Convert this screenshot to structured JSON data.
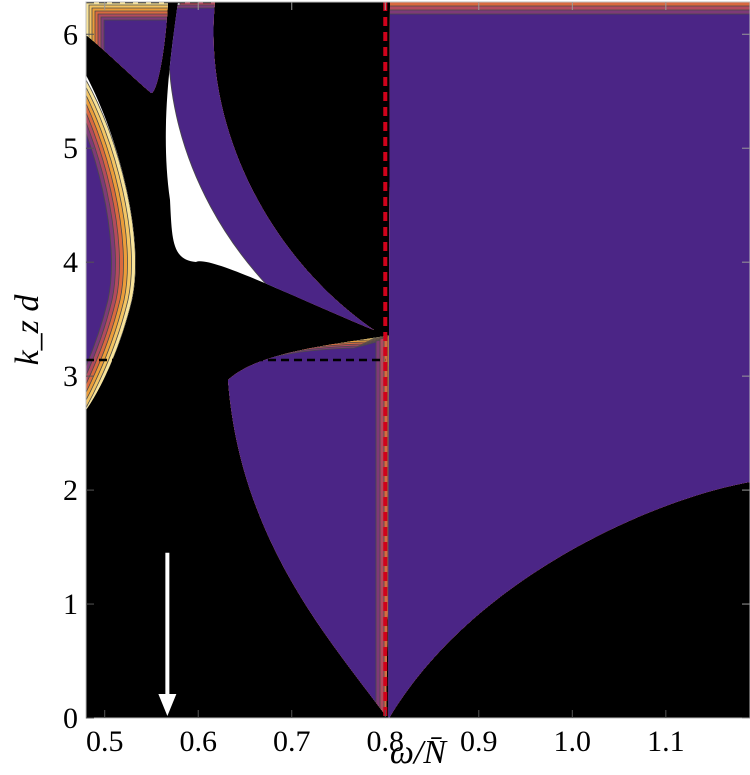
{
  "chart_data": {
    "type": "contour",
    "title": "",
    "xlabel": "ω/N̄",
    "ylabel": "k_z d",
    "xlim": [
      0.48,
      1.19
    ],
    "ylim": [
      0,
      6.283
    ],
    "x_ticks": [
      {
        "value": 0.5,
        "label": "0.5"
      },
      {
        "value": 0.6,
        "label": "0.6"
      },
      {
        "value": 0.7,
        "label": "0.7"
      },
      {
        "value": 0.8,
        "label": "0.8"
      },
      {
        "value": 0.9,
        "label": "0.9"
      },
      {
        "value": 1.0,
        "label": "1.0"
      },
      {
        "value": 1.1,
        "label": "1.1"
      }
    ],
    "y_ticks": [
      {
        "value": 0,
        "label": "0"
      },
      {
        "value": 1,
        "label": "1"
      },
      {
        "value": 2,
        "label": "2"
      },
      {
        "value": 3,
        "label": "3"
      },
      {
        "value": 4,
        "label": "4"
      },
      {
        "value": 5,
        "label": "5"
      },
      {
        "value": 6,
        "label": "6"
      }
    ],
    "reference_lines": [
      {
        "orientation": "horizontal",
        "value": 3.1416,
        "x_end": 0.8,
        "style": "dashed",
        "color": "#000000"
      },
      {
        "orientation": "horizontal",
        "value": 6.2832,
        "x_end": 0.8,
        "style": "dashed",
        "color": "#000000"
      },
      {
        "orientation": "vertical",
        "value": 0.8,
        "style": "dashed",
        "color": "#d0021b"
      }
    ],
    "annotation_arrow": {
      "x": 0.567,
      "y_from": 1.45,
      "y_to": 0,
      "color": "#ffffff"
    },
    "color_scale": [
      "#000000",
      "#4b2586",
      "#7e3a78",
      "#b24a5e",
      "#d9693f",
      "#eb9d3a",
      "#f3c462",
      "#f8e39a"
    ],
    "grid": false
  }
}
